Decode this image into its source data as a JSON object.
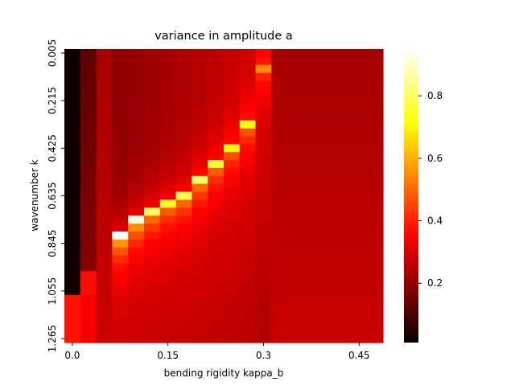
{
  "chart_data": {
    "type": "heatmap",
    "title": "variance in amplitude a",
    "xlabel": "bending rigidity kappa_b",
    "ylabel": "wavenumber k",
    "x_tick_labels": [
      "0.0",
      "0.15",
      "0.3",
      "0.45"
    ],
    "y_tick_labels": [
      "0.005",
      "0.215",
      "0.425",
      "0.635",
      "0.845",
      "1.055",
      "1.265"
    ],
    "colorbar": {
      "colormap": "hot",
      "range": [
        0.01,
        0.95
      ],
      "tick_labels": [
        "0.2",
        "0.4",
        "0.6",
        "0.8"
      ],
      "tick_values": [
        0.2,
        0.4,
        0.6,
        0.8
      ]
    },
    "grid": {
      "n_cols": 20,
      "n_rows": 37,
      "x_start": 0.0,
      "x_step": 0.025,
      "y_start": 0.005,
      "y_step": 0.035
    },
    "peak_ridge": [
      {
        "col": 3,
        "row": 23,
        "value": 0.95
      },
      {
        "col": 4,
        "row": 21,
        "value": 0.93
      },
      {
        "col": 5,
        "row": 20,
        "value": 0.8
      },
      {
        "col": 6,
        "row": 19,
        "value": 0.75
      },
      {
        "col": 7,
        "row": 18,
        "value": 0.78
      },
      {
        "col": 8,
        "row": 16,
        "value": 0.8
      },
      {
        "col": 9,
        "row": 14,
        "value": 0.75
      },
      {
        "col": 10,
        "row": 12,
        "value": 0.7
      },
      {
        "col": 11,
        "row": 9,
        "value": 0.72
      },
      {
        "col": 12,
        "row": 2,
        "value": 0.55
      }
    ]
  }
}
